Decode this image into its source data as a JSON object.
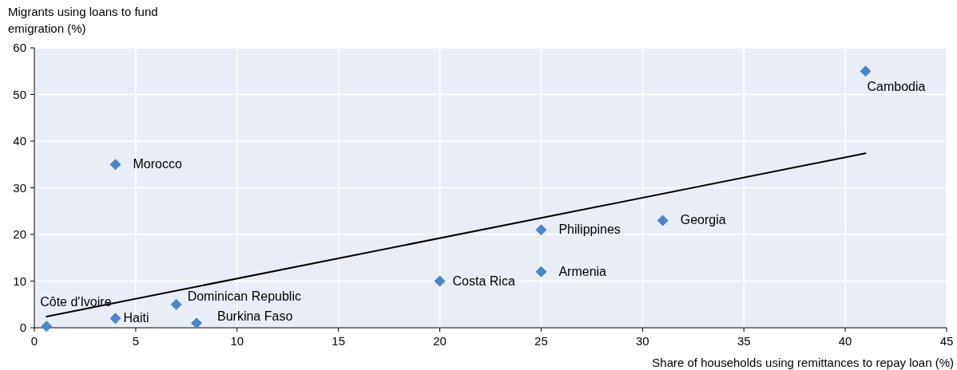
{
  "chart_data": {
    "type": "scatter",
    "xlabel": "Share of households using remittances to repay loan (%)",
    "ylabel": "Migrants using loans to fund emigration (%)",
    "xlim": [
      0,
      45
    ],
    "xticks": [
      0,
      5,
      10,
      15,
      20,
      25,
      30,
      35,
      40,
      45
    ],
    "ylim": [
      0,
      60
    ],
    "yticks": [
      0,
      10,
      20,
      30,
      40,
      50,
      60
    ],
    "grid": true,
    "series": [
      {
        "type": "scatter",
        "color": "#4a86c8",
        "marker": "diamond",
        "x": [
          0.6,
          4,
          4,
          7,
          8,
          20,
          25,
          25,
          31,
          41
        ],
        "values": [
          0.3,
          2,
          35,
          5,
          1,
          10,
          21,
          12,
          23,
          55
        ]
      },
      {
        "type": "line",
        "color": "#000000",
        "marker": "none",
        "line_style": "solid",
        "x": [
          0.6,
          41
        ],
        "values": [
          2.4,
          37.4
        ]
      }
    ],
    "annotations": [
      {
        "text": "Côte d'Ivoire",
        "x": 0.6,
        "y": 0.3
      },
      {
        "text": "Haiti",
        "x": 4,
        "y": 2
      },
      {
        "text": "Morocco",
        "x": 4,
        "y": 35
      },
      {
        "text": "Dominican Republic",
        "x": 7,
        "y": 5
      },
      {
        "text": "Burkina Faso",
        "x": 8,
        "y": 1
      },
      {
        "text": "Costa Rica",
        "x": 20,
        "y": 10
      },
      {
        "text": "Philippines",
        "x": 25,
        "y": 21
      },
      {
        "text": "Armenia",
        "x": 25,
        "y": 12
      },
      {
        "text": "Georgia",
        "x": 31,
        "y": 23
      },
      {
        "text": "Cambodia",
        "x": 41,
        "y": 55
      }
    ]
  }
}
